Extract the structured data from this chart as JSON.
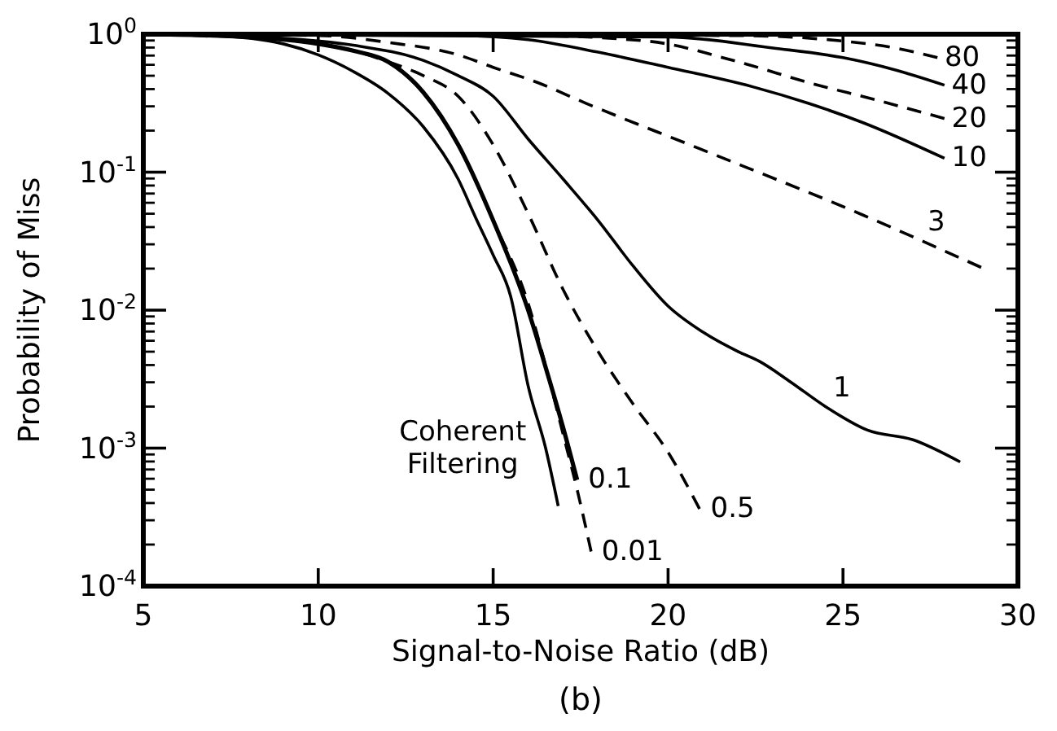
{
  "chart_data": {
    "type": "line",
    "xlabel": "Signal-to-Noise Ratio (dB)",
    "ylabel": "Probability of Miss",
    "log": "y",
    "grid": false,
    "marker": "none",
    "xlim": [
      5,
      30
    ],
    "xticks": [
      5,
      10,
      15,
      20,
      25,
      30
    ],
    "ylim": [
      0.0001,
      1
    ],
    "yticks": [
      {
        "value": 0.0001,
        "label": "10$^{-4}$"
      },
      {
        "value": 0.001,
        "label": "10$^{-3}$"
      },
      {
        "value": 0.01,
        "label": "10$^{-2}$"
      },
      {
        "value": 0.1,
        "label": "10$^{-1}$"
      },
      {
        "value": 1,
        "label": "10$^{0}$"
      }
    ],
    "series": [
      {
        "color": "#000000",
        "line_style": "solid",
        "x": [
          5,
          7,
          9,
          10,
          11,
          12,
          13,
          14,
          14.5,
          15,
          15.5,
          16,
          16.5,
          16.86
        ],
        "values": [
          1,
          0.977,
          0.851,
          0.708,
          0.537,
          0.372,
          0.214,
          0.0891,
          0.0468,
          0.0251,
          0.0126,
          0.00282,
          0.001,
          0.00038
        ]
      },
      {
        "color": "#000000",
        "line_style": "dashed",
        "x": [
          5,
          8,
          10,
          11,
          12,
          13,
          14,
          15,
          16,
          16.6,
          17,
          17.4,
          17.8
        ],
        "values": [
          1,
          0.955,
          0.851,
          0.759,
          0.631,
          0.38,
          0.158,
          0.0447,
          0.0112,
          0.00316,
          0.00126,
          0.000501,
          0.000178
        ]
      },
      {
        "color": "#000000",
        "line_style": "solid",
        "x": [
          5,
          8,
          10,
          11,
          12,
          13,
          14,
          15,
          16,
          16.6,
          17,
          17.4
        ],
        "values": [
          1,
          0.955,
          0.851,
          0.759,
          0.631,
          0.38,
          0.158,
          0.0447,
          0.01,
          0.00316,
          0.00141,
          0.000589
        ]
      },
      {
        "color": "#000000",
        "line_style": "dashed",
        "x": [
          5,
          9,
          11,
          12,
          13,
          14,
          15,
          16,
          17,
          18,
          19,
          20,
          20.9
        ],
        "values": [
          1,
          0.912,
          0.759,
          0.631,
          0.501,
          0.355,
          0.158,
          0.0501,
          0.0141,
          0.00501,
          0.00209,
          0.000933,
          0.000363
        ]
      },
      {
        "color": "#000000",
        "line_style": "solid",
        "x": [
          5,
          9,
          11,
          13,
          14,
          15,
          16,
          17,
          18,
          19,
          20,
          21,
          22,
          22.6,
          23.5,
          24.5,
          25.7,
          27,
          28.35
        ],
        "values": [
          1,
          0.933,
          0.832,
          0.646,
          0.501,
          0.355,
          0.174,
          0.0891,
          0.0447,
          0.0209,
          0.0107,
          0.00692,
          0.00501,
          0.00427,
          0.00302,
          0.002,
          0.00135,
          0.00115,
          0.000794
        ]
      },
      {
        "color": "#000000",
        "line_style": "dashed",
        "x": [
          5,
          10,
          12,
          14,
          15,
          16.26,
          17.65,
          20.9,
          25.56,
          28.95
        ],
        "values": [
          1,
          0.977,
          0.871,
          0.708,
          0.575,
          0.447,
          0.316,
          0.148,
          0.049,
          0.0204
        ]
      },
      {
        "color": "#000000",
        "line_style": "solid",
        "x": [
          5,
          14,
          16,
          18,
          20,
          22.4,
          24,
          25.56,
          27.9
        ],
        "values": [
          1,
          0.977,
          0.912,
          0.741,
          0.575,
          0.417,
          0.316,
          0.229,
          0.126
        ]
      },
      {
        "color": "#000000",
        "line_style": "dashed",
        "x": [
          5,
          16,
          19.4,
          22,
          24,
          26,
          27.9
        ],
        "values": [
          1,
          0.977,
          0.891,
          0.631,
          0.447,
          0.331,
          0.245
        ]
      },
      {
        "color": "#000000",
        "line_style": "solid",
        "x": [
          5,
          20,
          23,
          25,
          26.5,
          27.9
        ],
        "values": [
          1,
          0.955,
          0.794,
          0.676,
          0.55,
          0.427
        ]
      },
      {
        "color": "#000000",
        "line_style": "dashed",
        "x": [
          5,
          22,
          25,
          26.5,
          27.7
        ],
        "values": [
          1,
          0.977,
          0.891,
          0.794,
          0.676
        ]
      }
    ],
    "annotations": [
      {
        "text": "80",
        "x": 27.7,
        "y": 0.676
      },
      {
        "text": "40",
        "x": 27.9,
        "y": 0.427
      },
      {
        "text": "20",
        "x": 27.9,
        "y": 0.245
      },
      {
        "text": "10",
        "x": 27.9,
        "y": 0.126
      },
      {
        "text": "3",
        "x": 27.2,
        "y": 0.032
      },
      {
        "text": "1",
        "x": 24.5,
        "y": 0.002
      },
      {
        "text": "0.5",
        "x": 20.9,
        "y": 0.000363
      },
      {
        "text": "0.1",
        "x": 17.4,
        "y": 0.000589
      },
      {
        "text": "0.01",
        "x": 17.8,
        "y": 0.000178
      },
      {
        "text": "Coherent\nFiltering",
        "x": 16.5,
        "y": 0.001
      },
      "(b)"
    ]
  }
}
